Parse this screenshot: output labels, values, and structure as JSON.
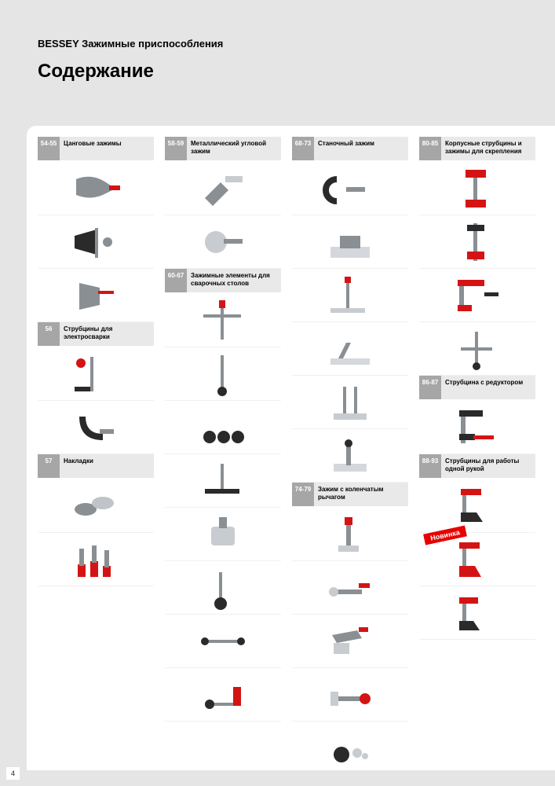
{
  "header": {
    "subtitle": "BESSEY Зажимные приспособления",
    "title": "Содержание"
  },
  "page_number": "4",
  "novinka_label": "Новинка",
  "colors": {
    "page_bg": "#e5e5e5",
    "content_bg": "#ffffff",
    "badge_bg": "#a6a6a6",
    "section_bg": "#e9e9e9",
    "accent_red": "#e60000",
    "steel": "#8a8f94",
    "dark": "#2a2a2a",
    "handle_red": "#d41414"
  },
  "columns": [
    {
      "sections": [
        {
          "pages": "54-55",
          "title": "Цанговые зажимы",
          "products": [
            "plier-clamp",
            "plier-clamp-2",
            "plier-clamp-3"
          ]
        },
        {
          "pages": "56",
          "title": "Струбцины для электросварки",
          "products": [
            "weld-clamp-1",
            "weld-clamp-2"
          ]
        },
        {
          "pages": "57",
          "title": "Накладки",
          "products": [
            "pads-1",
            "pads-2"
          ]
        }
      ]
    },
    {
      "sections": [
        {
          "pages": "58-59",
          "title": "Металлический угловой зажим",
          "products": [
            "angle-clamp-1",
            "angle-clamp-2"
          ]
        },
        {
          "pages": "60-67",
          "title": "Зажимные элементы для сварочных столов",
          "products": [
            "weld-table-1",
            "weld-table-2",
            "weld-table-3",
            "weld-table-4",
            "weld-table-5",
            "weld-table-6",
            "weld-table-7",
            "weld-table-8"
          ]
        }
      ]
    },
    {
      "sections": [
        {
          "pages": "68-73",
          "title": "Станочный зажим",
          "products": [
            "bench-1",
            "bench-2",
            "bench-3",
            "bench-4",
            "bench-5",
            "bench-6"
          ]
        },
        {
          "pages": "74-79",
          "title": "Зажим с коленчатым рычагом",
          "products": [
            "toggle-1",
            "toggle-2",
            "toggle-3",
            "toggle-4",
            "toggle-5"
          ]
        }
      ]
    },
    {
      "sections": [
        {
          "pages": "80-85",
          "title": "Корпусные струбцины и зажимы для скрепления",
          "products": [
            "body-1",
            "body-2",
            "body-3",
            "body-4"
          ]
        },
        {
          "pages": "86-87",
          "title": "Струбцина с редуктором",
          "products": [
            "gear-1"
          ]
        },
        {
          "pages": "88-93",
          "title": "Струбцины для работы одной рукой",
          "products": [
            "onehand-1",
            "onehand-2",
            "onehand-3"
          ]
        }
      ]
    }
  ]
}
